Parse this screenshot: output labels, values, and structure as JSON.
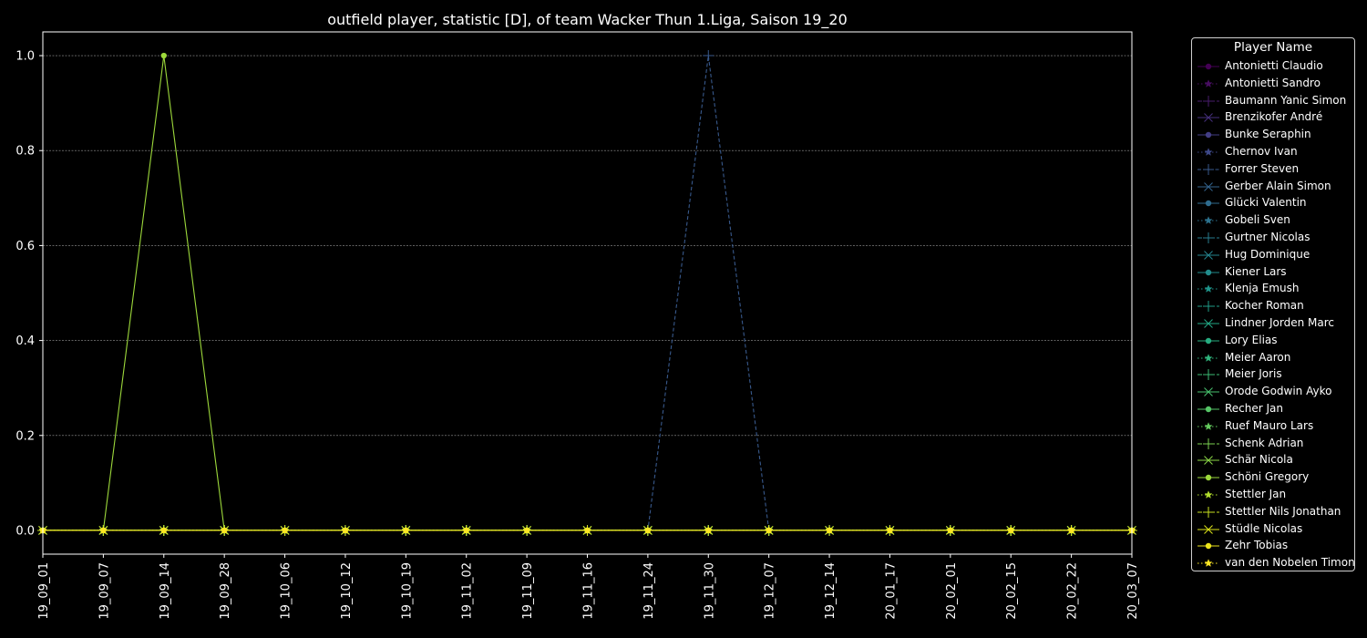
{
  "chart_data": {
    "type": "line",
    "title": "outfield player, statistic [D], of team Wacker Thun 1.Liga, Saison 19_20",
    "xlabel": "",
    "ylabel": "",
    "ylim": [
      -0.05,
      1.05
    ],
    "yticks": [
      "0.0",
      "0.2",
      "0.4",
      "0.6",
      "0.8",
      "1.0"
    ],
    "grid": true,
    "legend_title": "Player Name",
    "legend_position": "outside-right",
    "x": [
      "19_09_01",
      "19_09_07",
      "19_09_14",
      "19_09_28",
      "19_10_06",
      "19_10_12",
      "19_10_19",
      "19_11_02",
      "19_11_09",
      "19_11_16",
      "19_11_24",
      "19_11_30",
      "19_12_07",
      "19_12_14",
      "20_01_17",
      "20_02_01",
      "20_02_15",
      "20_02_22",
      "20_03_07"
    ],
    "series": [
      {
        "name": "Antonietti Claudio",
        "color": "#440154",
        "marker": "circle",
        "dash": "solid",
        "values": [
          0,
          0,
          0,
          0,
          0,
          0,
          0,
          0,
          0,
          0,
          0,
          0,
          0,
          0,
          0,
          0,
          0,
          0,
          0
        ]
      },
      {
        "name": "Antonietti Sandro",
        "color": "#470e61",
        "marker": "star",
        "dash": "dotted",
        "values": [
          0,
          0,
          0,
          0,
          0,
          0,
          0,
          0,
          0,
          0,
          0,
          0,
          0,
          0,
          0,
          0,
          0,
          0,
          0
        ]
      },
      {
        "name": "Baumann Yanic Simon",
        "color": "#481b6d",
        "marker": "plus",
        "dash": "dashdot",
        "values": [
          0,
          0,
          0,
          0,
          0,
          0,
          0,
          0,
          0,
          0,
          0,
          0,
          0,
          0,
          0,
          0,
          0,
          0,
          0
        ]
      },
      {
        "name": "Brenzikofer André",
        "color": "#46307e",
        "marker": "x",
        "dash": "solid",
        "values": [
          0,
          0,
          0,
          0,
          0,
          0,
          0,
          0,
          0,
          0,
          0,
          0,
          0,
          0,
          0,
          0,
          0,
          0,
          0
        ]
      },
      {
        "name": "Bunke Seraphin",
        "color": "#433e85",
        "marker": "circle",
        "dash": "solid",
        "values": [
          0,
          0,
          0,
          0,
          0,
          0,
          0,
          0,
          0,
          0,
          0,
          0,
          0,
          0,
          0,
          0,
          0,
          0,
          0
        ]
      },
      {
        "name": "Chernov Ivan",
        "color": "#3e4989",
        "marker": "star",
        "dash": "dotted",
        "values": [
          0,
          0,
          0,
          0,
          0,
          0,
          0,
          0,
          0,
          0,
          0,
          0,
          0,
          0,
          0,
          0,
          0,
          0,
          0
        ]
      },
      {
        "name": "Forrer Steven",
        "color": "#38598c",
        "marker": "plus",
        "dash": "dashed",
        "values": [
          0,
          0,
          0,
          0,
          0,
          0,
          0,
          0,
          0,
          0,
          0,
          1,
          0,
          0,
          0,
          0,
          0,
          0,
          0
        ]
      },
      {
        "name": "Gerber Alain Simon",
        "color": "#33638d",
        "marker": "x",
        "dash": "solid",
        "values": [
          0,
          0,
          0,
          0,
          0,
          0,
          0,
          0,
          0,
          0,
          0,
          0,
          0,
          0,
          0,
          0,
          0,
          0,
          0
        ]
      },
      {
        "name": "Glücki Valentin",
        "color": "#2f6c8e",
        "marker": "circle",
        "dash": "solid",
        "values": [
          0,
          0,
          0,
          0,
          0,
          0,
          0,
          0,
          0,
          0,
          0,
          0,
          0,
          0,
          0,
          0,
          0,
          0,
          0
        ]
      },
      {
        "name": "Gobeli Sven",
        "color": "#2c728e",
        "marker": "star",
        "dash": "dotted",
        "values": [
          0,
          0,
          0,
          0,
          0,
          0,
          0,
          0,
          0,
          0,
          0,
          0,
          0,
          0,
          0,
          0,
          0,
          0,
          0
        ]
      },
      {
        "name": "Gurtner Nicolas",
        "color": "#287c8e",
        "marker": "plus",
        "dash": "dashdot",
        "values": [
          0,
          0,
          0,
          0,
          0,
          0,
          0,
          0,
          0,
          0,
          0,
          0,
          0,
          0,
          0,
          0,
          0,
          0,
          0
        ]
      },
      {
        "name": "Hug Dominique",
        "color": "#25838e",
        "marker": "x",
        "dash": "solid",
        "values": [
          0,
          0,
          0,
          0,
          0,
          0,
          0,
          0,
          0,
          0,
          0,
          0,
          0,
          0,
          0,
          0,
          0,
          0,
          0
        ]
      },
      {
        "name": "Kiener Lars",
        "color": "#228c8d",
        "marker": "circle",
        "dash": "solid",
        "values": [
          0,
          0,
          0,
          0,
          0,
          0,
          0,
          0,
          0,
          0,
          0,
          0,
          0,
          0,
          0,
          0,
          0,
          0,
          0
        ]
      },
      {
        "name": "Klenja Emush",
        "color": "#1f958b",
        "marker": "star",
        "dash": "dotted",
        "values": [
          0,
          0,
          0,
          0,
          0,
          0,
          0,
          0,
          0,
          0,
          0,
          0,
          0,
          0,
          0,
          0,
          0,
          0,
          0
        ]
      },
      {
        "name": "Kocher Roman",
        "color": "#1f9e89",
        "marker": "plus",
        "dash": "dashdot",
        "values": [
          0,
          0,
          0,
          0,
          0,
          0,
          0,
          0,
          0,
          0,
          0,
          0,
          0,
          0,
          0,
          0,
          0,
          0,
          0
        ]
      },
      {
        "name": "Lindner Jorden Marc",
        "color": "#22a785",
        "marker": "x",
        "dash": "solid",
        "values": [
          0,
          0,
          0,
          0,
          0,
          0,
          0,
          0,
          0,
          0,
          0,
          0,
          0,
          0,
          0,
          0,
          0,
          0,
          0
        ]
      },
      {
        "name": "Lory Elias",
        "color": "#27ad81",
        "marker": "circle",
        "dash": "solid",
        "values": [
          0,
          0,
          0,
          0,
          0,
          0,
          0,
          0,
          0,
          0,
          0,
          0,
          0,
          0,
          0,
          0,
          0,
          0,
          0
        ]
      },
      {
        "name": "Meier Aaron",
        "color": "#2fb47c",
        "marker": "star",
        "dash": "dotted",
        "values": [
          0,
          0,
          0,
          0,
          0,
          0,
          0,
          0,
          0,
          0,
          0,
          0,
          0,
          0,
          0,
          0,
          0,
          0,
          0
        ]
      },
      {
        "name": "Meier Joris",
        "color": "#3bbb75",
        "marker": "plus",
        "dash": "dashdot",
        "values": [
          0,
          0,
          0,
          0,
          0,
          0,
          0,
          0,
          0,
          0,
          0,
          0,
          0,
          0,
          0,
          0,
          0,
          0,
          0
        ]
      },
      {
        "name": "Orode Godwin Ayko",
        "color": "#48c16e",
        "marker": "x",
        "dash": "solid",
        "values": [
          0,
          0,
          0,
          0,
          0,
          0,
          0,
          0,
          0,
          0,
          0,
          0,
          0,
          0,
          0,
          0,
          0,
          0,
          0
        ]
      },
      {
        "name": "Recher Jan",
        "color": "#56c667",
        "marker": "circle",
        "dash": "solid",
        "values": [
          0,
          0,
          0,
          0,
          0,
          0,
          0,
          0,
          0,
          0,
          0,
          0,
          0,
          0,
          0,
          0,
          0,
          0,
          0
        ]
      },
      {
        "name": "Ruef Mauro Lars",
        "color": "#65cb5e",
        "marker": "star",
        "dash": "dotted",
        "values": [
          0,
          0,
          0,
          0,
          0,
          0,
          0,
          0,
          0,
          0,
          0,
          0,
          0,
          0,
          0,
          0,
          0,
          0,
          0
        ]
      },
      {
        "name": "Schenk Adrian",
        "color": "#7ad151",
        "marker": "plus",
        "dash": "dashdot",
        "values": [
          0,
          0,
          0,
          0,
          0,
          0,
          0,
          0,
          0,
          0,
          0,
          0,
          0,
          0,
          0,
          0,
          0,
          0,
          0
        ]
      },
      {
        "name": "Schär Nicola",
        "color": "#8bd646",
        "marker": "x",
        "dash": "solid",
        "values": [
          0,
          0,
          0,
          0,
          0,
          0,
          0,
          0,
          0,
          0,
          0,
          0,
          0,
          0,
          0,
          0,
          0,
          0,
          0
        ]
      },
      {
        "name": "Schöni Gregory",
        "color": "#9dd93b",
        "marker": "circle",
        "dash": "solid",
        "values": [
          0,
          0,
          1,
          0,
          0,
          0,
          0,
          0,
          0,
          0,
          0,
          0,
          0,
          0,
          0,
          0,
          0,
          0,
          0
        ]
      },
      {
        "name": "Stettler Jan",
        "color": "#b2dd2d",
        "marker": "star",
        "dash": "dotted",
        "values": [
          0,
          0,
          0,
          0,
          0,
          0,
          0,
          0,
          0,
          0,
          0,
          0,
          0,
          0,
          0,
          0,
          0,
          0,
          0
        ]
      },
      {
        "name": "Stettler Nils Jonathan",
        "color": "#c8e020",
        "marker": "plus",
        "dash": "dashdot",
        "values": [
          0,
          0,
          0,
          0,
          0,
          0,
          0,
          0,
          0,
          0,
          0,
          0,
          0,
          0,
          0,
          0,
          0,
          0,
          0
        ]
      },
      {
        "name": "Stüdle Nicolas",
        "color": "#dde318",
        "marker": "x",
        "dash": "solid",
        "values": [
          0,
          0,
          0,
          0,
          0,
          0,
          0,
          0,
          0,
          0,
          0,
          0,
          0,
          0,
          0,
          0,
          0,
          0,
          0
        ]
      },
      {
        "name": "Zehr Tobias",
        "color": "#ece51b",
        "marker": "circle",
        "dash": "solid",
        "values": [
          0,
          0,
          0,
          0,
          0,
          0,
          0,
          0,
          0,
          0,
          0,
          0,
          0,
          0,
          0,
          0,
          0,
          0,
          0
        ]
      },
      {
        "name": "van den Nobelen Timon",
        "color": "#fde725",
        "marker": "star",
        "dash": "dotted",
        "values": [
          0,
          0,
          0,
          0,
          0,
          0,
          0,
          0,
          0,
          0,
          0,
          0,
          0,
          0,
          0,
          0,
          0,
          0,
          0
        ]
      }
    ]
  }
}
